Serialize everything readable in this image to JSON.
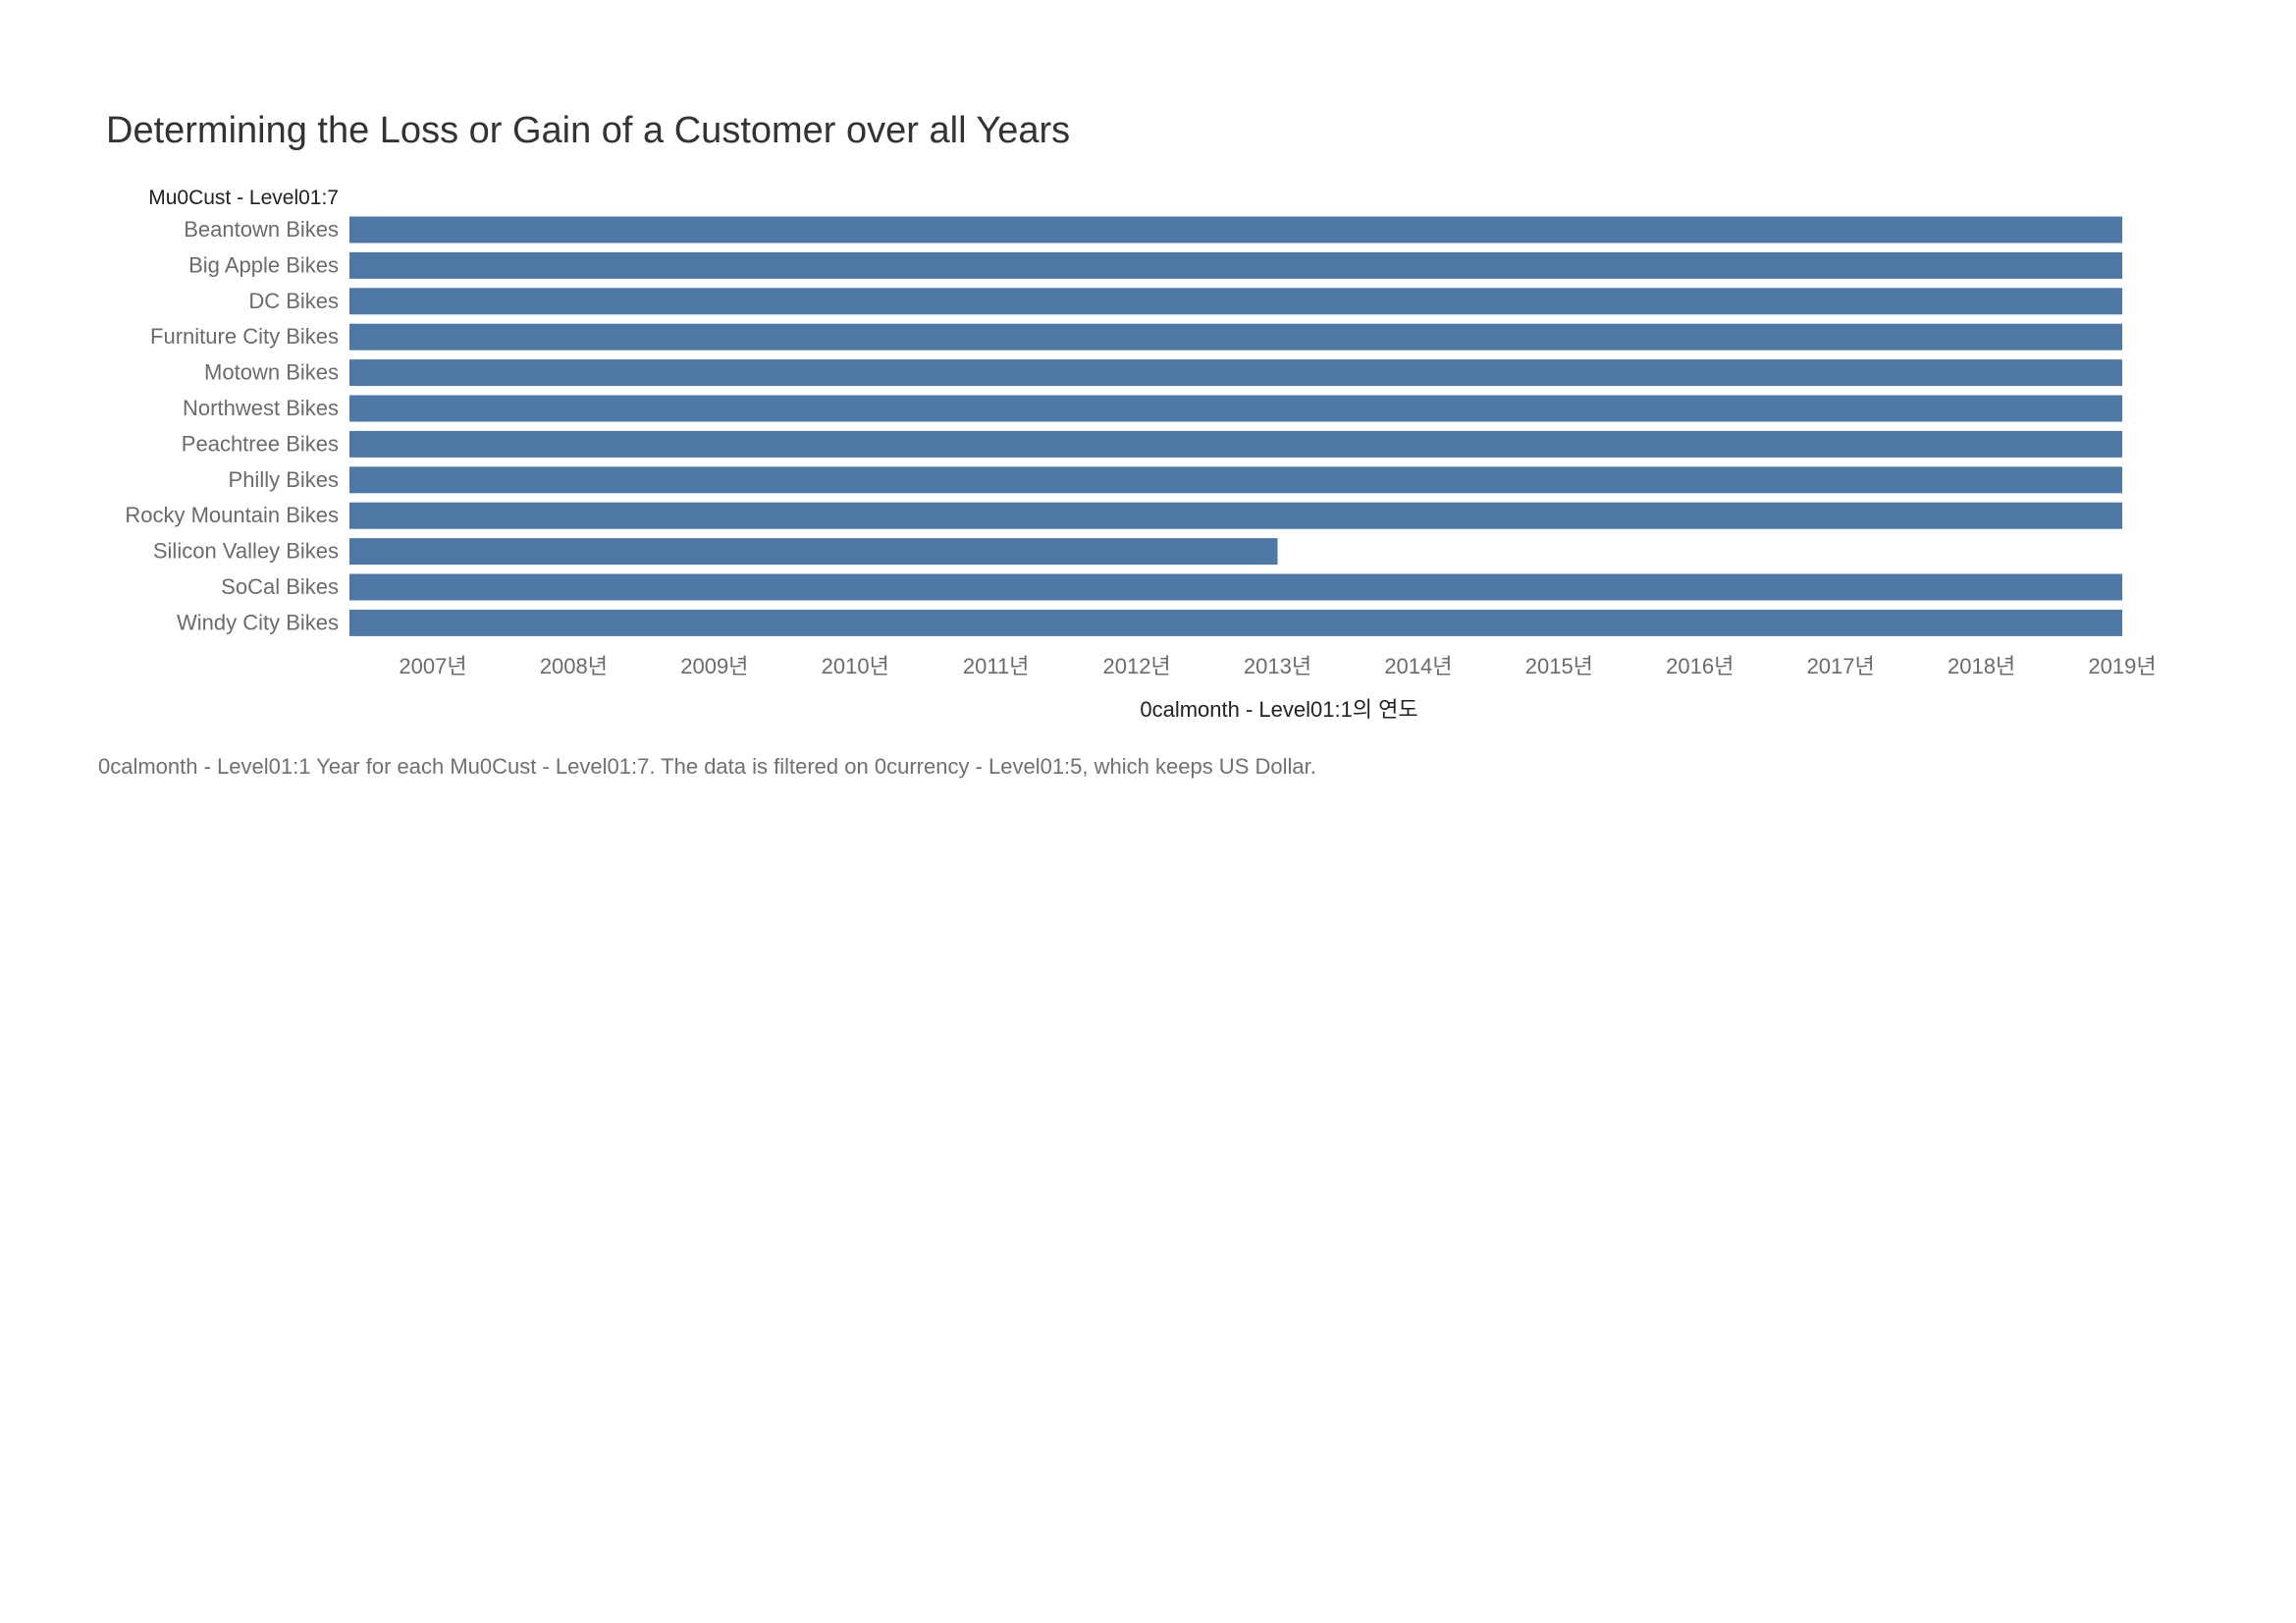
{
  "chart_data": {
    "type": "bar",
    "orientation": "horizontal",
    "title": "Determining the Loss or Gain of a Customer over all Years",
    "ylabel": "Mu0Cust - Level01:7",
    "xlabel": "0calmonth - Level01:1의 연도",
    "categories": [
      "Beantown Bikes",
      "Big Apple Bikes",
      "DC Bikes",
      "Furniture City Bikes",
      "Motown Bikes",
      "Northwest Bikes",
      "Peachtree Bikes",
      "Philly Bikes",
      "Rocky Mountain Bikes",
      "Silicon Valley Bikes",
      "SoCal Bikes",
      "Windy City Bikes"
    ],
    "series": [
      {
        "start": [
          2006.4,
          2006.4,
          2006.4,
          2006.4,
          2006.4,
          2006.4,
          2006.4,
          2006.4,
          2006.4,
          2006.4,
          2006.4,
          2006.4
        ],
        "end": [
          2019,
          2019,
          2019,
          2019,
          2019,
          2019,
          2019,
          2019,
          2019,
          2013,
          2019,
          2019
        ]
      }
    ],
    "x_ticks": [
      2007,
      2008,
      2009,
      2010,
      2011,
      2012,
      2013,
      2014,
      2015,
      2016,
      2017,
      2018,
      2019
    ],
    "x_tick_labels": [
      "2007년",
      "2008년",
      "2009년",
      "2010년",
      "2011년",
      "2012년",
      "2013년",
      "2014년",
      "2015년",
      "2016년",
      "2017년",
      "2018년",
      "2019년"
    ],
    "xlim": [
      2006.4,
      2019
    ],
    "grid": false,
    "bar_color": "#4e79a7",
    "caption": "0calmonth - Level01:1 Year for each Mu0Cust - Level01:7. The data is filtered on 0currency - Level01:5, which keeps US Dollar."
  }
}
